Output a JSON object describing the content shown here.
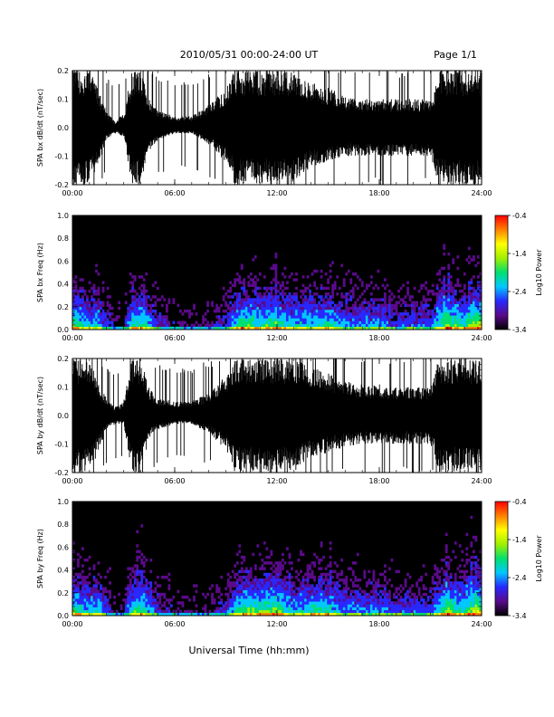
{
  "header": {
    "title": "2010/05/31  00:00-24:00 UT",
    "page": "Page 1/1"
  },
  "xaxis_label": "Universal Time (hh:mm)",
  "colors": {
    "trace": "#000000",
    "colorbar": [
      "#000000",
      "#5a0a8a",
      "#2828ff",
      "#00c8ff",
      "#00e070",
      "#a0f000",
      "#ffff00",
      "#ff8000",
      "#ff0000"
    ]
  },
  "chart_data": [
    {
      "type": "line",
      "ylabel": "SPA bx dB/dt (nT/sec)",
      "xlim": [
        0,
        24
      ],
      "ylim": [
        -0.2,
        0.2
      ],
      "xticks": [
        "00:00",
        "06:00",
        "12:00",
        "18:00",
        "24:00"
      ],
      "yticks": [
        "-0.2",
        "-0.1",
        "0.0",
        "0.1",
        "0.2"
      ],
      "envelope": {
        "hour": [
          0,
          1,
          1.5,
          2,
          2.5,
          3,
          3.5,
          4,
          4.5,
          5,
          6,
          7,
          8,
          9,
          9.5,
          10,
          11,
          12,
          13,
          14,
          15,
          16,
          17,
          18,
          19,
          20,
          21,
          21.5,
          22,
          23,
          24
        ],
        "upper": [
          0.2,
          0.2,
          0.14,
          0.06,
          0.02,
          0.05,
          0.2,
          0.2,
          0.1,
          0.06,
          0.04,
          0.04,
          0.08,
          0.14,
          0.2,
          0.2,
          0.2,
          0.2,
          0.2,
          0.16,
          0.14,
          0.11,
          0.1,
          0.1,
          0.1,
          0.1,
          0.1,
          0.2,
          0.2,
          0.2,
          0.2
        ],
        "lower": [
          -0.2,
          -0.2,
          -0.14,
          -0.04,
          -0.02,
          -0.03,
          -0.2,
          -0.2,
          -0.08,
          -0.05,
          -0.02,
          -0.02,
          -0.06,
          -0.12,
          -0.2,
          -0.2,
          -0.2,
          -0.2,
          -0.2,
          -0.14,
          -0.12,
          -0.1,
          -0.1,
          -0.1,
          -0.1,
          -0.1,
          -0.1,
          -0.2,
          -0.2,
          -0.2,
          -0.2
        ]
      }
    },
    {
      "type": "heatmap",
      "ylabel": "SPA bx Freq (Hz)",
      "colorbar_label": "Log10 Power",
      "xlim": [
        0,
        24
      ],
      "ylim": [
        0,
        1.0
      ],
      "clim": [
        -3.4,
        -0.4
      ],
      "xticks": [
        "00:00",
        "06:00",
        "12:00",
        "18:00",
        "24:00"
      ],
      "yticks": [
        "0.0",
        "0.2",
        "0.4",
        "0.6",
        "0.8",
        "1.0"
      ],
      "cticks": [
        "-0.4",
        "-1.4",
        "-2.4",
        "-3.4"
      ],
      "activity": {
        "hour": [
          0,
          0.5,
          1,
          1.5,
          2,
          2.5,
          3,
          3.5,
          4,
          5,
          6,
          7,
          8,
          9,
          10,
          11,
          12,
          13,
          14,
          15,
          16,
          17,
          18,
          19,
          20,
          21,
          21.5,
          22,
          22.5,
          23,
          23.5,
          24
        ],
        "level": [
          0.5,
          0.45,
          0.35,
          0.4,
          0.2,
          0.1,
          0.1,
          0.45,
          0.5,
          0.2,
          0.1,
          0.1,
          0.1,
          0.2,
          0.55,
          0.45,
          0.5,
          0.35,
          0.4,
          0.45,
          0.3,
          0.3,
          0.3,
          0.2,
          0.25,
          0.25,
          0.4,
          0.6,
          0.5,
          0.45,
          0.6,
          0.6
        ]
      }
    },
    {
      "type": "line",
      "ylabel": "SPA by dB/dt (nT/sec)",
      "xlim": [
        0,
        24
      ],
      "ylim": [
        -0.2,
        0.2
      ],
      "xticks": [
        "00:00",
        "06:00",
        "12:00",
        "18:00",
        "24:00"
      ],
      "yticks": [
        "-0.2",
        "-0.1",
        "0.0",
        "0.1",
        "0.2"
      ],
      "envelope": {
        "hour": [
          0,
          1,
          1.5,
          2,
          2.5,
          3,
          3.5,
          4,
          4.5,
          5,
          6,
          7,
          8,
          9,
          9.5,
          10,
          11,
          12,
          13,
          14,
          15,
          16,
          17,
          18,
          19,
          20,
          21,
          21.5,
          22,
          23,
          24
        ],
        "upper": [
          0.2,
          0.2,
          0.12,
          0.06,
          0.03,
          0.05,
          0.2,
          0.2,
          0.1,
          0.06,
          0.05,
          0.05,
          0.08,
          0.14,
          0.2,
          0.2,
          0.2,
          0.2,
          0.2,
          0.17,
          0.15,
          0.12,
          0.11,
          0.11,
          0.1,
          0.1,
          0.1,
          0.2,
          0.2,
          0.2,
          0.2
        ],
        "lower": [
          -0.2,
          -0.2,
          -0.13,
          -0.05,
          -0.03,
          -0.03,
          -0.2,
          -0.2,
          -0.08,
          -0.05,
          -0.03,
          -0.03,
          -0.06,
          -0.12,
          -0.2,
          -0.2,
          -0.2,
          -0.2,
          -0.2,
          -0.15,
          -0.13,
          -0.11,
          -0.1,
          -0.1,
          -0.1,
          -0.1,
          -0.1,
          -0.2,
          -0.2,
          -0.2,
          -0.2
        ]
      }
    },
    {
      "type": "heatmap",
      "ylabel": "SPA by Freq (Hz)",
      "colorbar_label": "Log10 Power",
      "xlim": [
        0,
        24
      ],
      "ylim": [
        0,
        1.0
      ],
      "clim": [
        -3.4,
        -0.4
      ],
      "xticks": [
        "00:00",
        "06:00",
        "12:00",
        "18:00",
        "24:00"
      ],
      "yticks": [
        "0.0",
        "0.2",
        "0.4",
        "0.6",
        "0.8",
        "1.0"
      ],
      "cticks": [
        "-0.4",
        "-1.4",
        "-2.4",
        "-3.4"
      ],
      "activity": {
        "hour": [
          0,
          0.5,
          1,
          1.5,
          2,
          2.5,
          3,
          3.5,
          4,
          5,
          6,
          7,
          8,
          9,
          10,
          11,
          12,
          13,
          14,
          15,
          16,
          17,
          18,
          19,
          20,
          21,
          21.5,
          22,
          22.5,
          23,
          23.5,
          24
        ],
        "level": [
          0.5,
          0.45,
          0.35,
          0.45,
          0.2,
          0.1,
          0.1,
          0.45,
          0.5,
          0.2,
          0.1,
          0.1,
          0.1,
          0.2,
          0.55,
          0.5,
          0.6,
          0.35,
          0.45,
          0.45,
          0.3,
          0.3,
          0.3,
          0.25,
          0.25,
          0.25,
          0.4,
          0.6,
          0.5,
          0.45,
          0.6,
          0.6
        ]
      }
    }
  ]
}
